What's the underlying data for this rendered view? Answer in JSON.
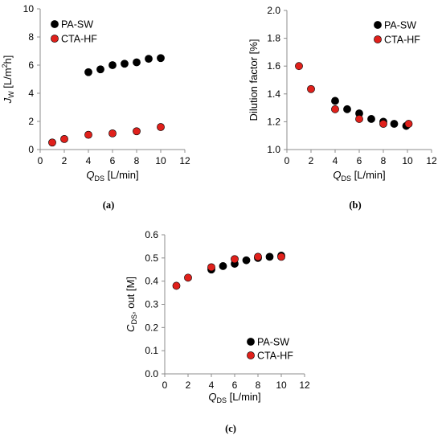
{
  "chart_data": [
    {
      "type": "scatter",
      "panel_label": "(a)",
      "xlabel": "Q",
      "xlabel_sub": "DS",
      "xlabel_unit": " [L/min]",
      "ylabel": "J",
      "ylabel_sub": "W",
      "ylabel_unit_pre": " [L/m",
      "ylabel_unit_sup": "2",
      "ylabel_unit_post": "h]",
      "xlim": [
        0,
        12
      ],
      "ylim": [
        0,
        10
      ],
      "xticks": [
        0,
        2,
        4,
        6,
        8,
        10,
        12
      ],
      "yticks": [
        0,
        2,
        4,
        6,
        8,
        10
      ],
      "legend_position": "top-left",
      "grid": false,
      "series": [
        {
          "name": "PA-SW",
          "color": "#000000",
          "x": [
            4.0,
            5.0,
            6.0,
            7.0,
            8.0,
            9.0,
            10.0
          ],
          "y": [
            5.5,
            5.7,
            6.0,
            6.1,
            6.2,
            6.45,
            6.5
          ]
        },
        {
          "name": "CTA-HF",
          "color": "#e0201b",
          "x": [
            1.0,
            2.0,
            4.0,
            6.0,
            8.0,
            10.0
          ],
          "y": [
            0.5,
            0.75,
            1.05,
            1.15,
            1.3,
            1.6
          ]
        }
      ]
    },
    {
      "type": "scatter",
      "panel_label": "(b)",
      "xlabel": "Q",
      "xlabel_sub": "DS",
      "xlabel_unit": " [L/min]",
      "ylabel": "Dilution factor [%]",
      "xlim": [
        0,
        12
      ],
      "ylim": [
        1.0,
        2.0
      ],
      "xticks": [
        0,
        2,
        4,
        6,
        8,
        10,
        12
      ],
      "yticks": [
        "1.0",
        "1.2",
        "1.4",
        "1.6",
        "1.8",
        "2.0"
      ],
      "legend_position": "top-right",
      "grid": false,
      "series": [
        {
          "name": "PA-SW",
          "color": "#000000",
          "x": [
            4.0,
            5.0,
            6.0,
            7.0,
            8.0,
            8.9,
            9.9
          ],
          "y": [
            1.35,
            1.29,
            1.26,
            1.22,
            1.2,
            1.185,
            1.17
          ]
        },
        {
          "name": "CTA-HF",
          "color": "#e0201b",
          "x": [
            1.0,
            2.0,
            4.0,
            6.0,
            8.0,
            10.1
          ],
          "y": [
            1.6,
            1.435,
            1.29,
            1.22,
            1.185,
            1.185
          ]
        }
      ]
    },
    {
      "type": "scatter",
      "panel_label": "(c)",
      "xlabel": "Q",
      "xlabel_sub": "DS",
      "xlabel_unit": " [L/min]",
      "ylabel": "C",
      "ylabel_sub": "DS",
      "ylabel_unit_pre": ", out [M]",
      "xlim": [
        0,
        12
      ],
      "ylim": [
        0.0,
        0.6
      ],
      "xticks": [
        0,
        2,
        4,
        6,
        8,
        10,
        12
      ],
      "yticks": [
        "0.0",
        "0.1",
        "0.2",
        "0.3",
        "0.4",
        "0.5",
        "0.6"
      ],
      "legend_position": "bottom-right",
      "grid": false,
      "series": [
        {
          "name": "PA-SW",
          "color": "#000000",
          "x": [
            4.0,
            5.0,
            6.0,
            7.0,
            8.0,
            9.0,
            10.0
          ],
          "y": [
            0.45,
            0.465,
            0.475,
            0.49,
            0.5,
            0.505,
            0.51
          ]
        },
        {
          "name": "CTA-HF",
          "color": "#e0201b",
          "x": [
            1.0,
            2.0,
            4.0,
            6.0,
            8.0,
            10.0
          ],
          "y": [
            0.38,
            0.415,
            0.46,
            0.495,
            0.505,
            0.505
          ]
        }
      ]
    }
  ]
}
